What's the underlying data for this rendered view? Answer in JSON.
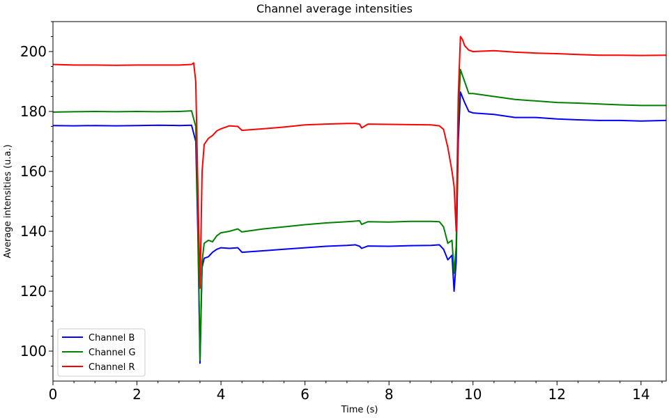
{
  "chart_data": {
    "type": "line",
    "title": "Channel average intensities",
    "xlabel": "Time (s)",
    "ylabel": "Average intensities (u.a.)",
    "xlim": [
      0,
      14.6
    ],
    "ylim": [
      90,
      210
    ],
    "xticks": [
      0,
      2,
      4,
      6,
      8,
      10,
      12,
      14
    ],
    "yticks": [
      100,
      120,
      140,
      160,
      180,
      200
    ],
    "xtick_labels": [
      "0",
      "2",
      "4",
      "6",
      "8",
      "10",
      "12",
      "14"
    ],
    "ytick_labels": [
      "100",
      "120",
      "140",
      "160",
      "180",
      "200"
    ],
    "grid": false,
    "legend_position": "lower-left",
    "series": [
      {
        "name": "Channel B",
        "color": "#0000ff",
        "x": [
          0,
          0.5,
          1.0,
          1.5,
          2.0,
          2.5,
          3.0,
          3.3,
          3.4,
          3.45,
          3.5,
          3.55,
          3.6,
          3.7,
          3.8,
          3.9,
          4.0,
          4.2,
          4.4,
          4.5,
          5.0,
          5.5,
          6.0,
          6.5,
          7.0,
          7.2,
          7.3,
          7.35,
          7.5,
          8.0,
          8.5,
          9.0,
          9.2,
          9.3,
          9.4,
          9.5,
          9.55,
          9.6,
          9.65,
          9.7,
          9.8,
          9.9,
          10.0,
          10.5,
          11.0,
          11.5,
          12.0,
          12.5,
          13.0,
          13.5,
          14.0,
          14.6
        ],
        "y": [
          175.3,
          175.2,
          175.3,
          175.2,
          175.3,
          175.4,
          175.3,
          175.4,
          170,
          140,
          96,
          128,
          131,
          131.5,
          133,
          134,
          134.5,
          134.3,
          134.5,
          133,
          133.5,
          134,
          134.5,
          135,
          135.3,
          135.5,
          135.0,
          134.3,
          135.1,
          135.0,
          135.2,
          135.3,
          135.5,
          134.0,
          130.5,
          132,
          120,
          130,
          170,
          186.5,
          183,
          180,
          179.5,
          179,
          178,
          178,
          177.5,
          177.2,
          177,
          177,
          176.8,
          177
        ]
      },
      {
        "name": "Channel G",
        "color": "#008000",
        "x": [
          0,
          0.5,
          1.0,
          1.5,
          2.0,
          2.5,
          3.0,
          3.3,
          3.4,
          3.45,
          3.5,
          3.55,
          3.6,
          3.7,
          3.8,
          3.9,
          4.0,
          4.2,
          4.4,
          4.5,
          5.0,
          5.5,
          6.0,
          6.5,
          7.0,
          7.2,
          7.3,
          7.35,
          7.5,
          8.0,
          8.5,
          9.0,
          9.2,
          9.3,
          9.4,
          9.5,
          9.55,
          9.6,
          9.65,
          9.7,
          9.8,
          9.9,
          10.0,
          10.5,
          11.0,
          11.5,
          12.0,
          12.5,
          13.0,
          13.5,
          14.0,
          14.6
        ],
        "y": [
          179.8,
          179.9,
          180.0,
          179.9,
          180.0,
          179.9,
          180.0,
          180.2,
          175,
          145,
          97,
          130,
          136,
          137,
          136.5,
          138.5,
          139.5,
          140.0,
          140.8,
          139.8,
          140.8,
          141.5,
          142.2,
          142.8,
          143.2,
          143.4,
          143.5,
          142.3,
          143.2,
          143.1,
          143.3,
          143.3,
          143.2,
          141.5,
          136,
          137,
          126,
          135,
          178,
          194,
          190,
          186,
          186,
          185,
          184,
          183.5,
          183,
          182.8,
          182.5,
          182.2,
          182,
          182
        ]
      },
      {
        "name": "Channel R",
        "color": "#ff0000",
        "x": [
          0,
          0.5,
          1.0,
          1.5,
          2.0,
          2.5,
          3.0,
          3.3,
          3.35,
          3.4,
          3.45,
          3.5,
          3.55,
          3.6,
          3.7,
          3.8,
          3.9,
          4.0,
          4.2,
          4.4,
          4.5,
          5.0,
          5.5,
          6.0,
          6.5,
          7.0,
          7.2,
          7.3,
          7.35,
          7.5,
          8.0,
          8.5,
          9.0,
          9.2,
          9.3,
          9.4,
          9.5,
          9.55,
          9.6,
          9.65,
          9.7,
          9.75,
          9.8,
          9.9,
          10.0,
          10.5,
          11.0,
          11.5,
          12.0,
          12.5,
          13.0,
          13.5,
          14.0,
          14.6
        ],
        "y": [
          195.7,
          195.5,
          195.5,
          195.4,
          195.5,
          195.5,
          195.5,
          195.7,
          196.2,
          190,
          155,
          121,
          160,
          169,
          171,
          172,
          173.5,
          174.2,
          175.2,
          175.0,
          173.7,
          174.2,
          174.8,
          175.5,
          175.8,
          176.0,
          176.0,
          175.8,
          174.5,
          175.8,
          175.7,
          175.6,
          175.5,
          175.2,
          174,
          168,
          160,
          155,
          140,
          185,
          205,
          204,
          202,
          200.5,
          200,
          200.3,
          199.8,
          199.5,
          199.3,
          199.0,
          198.8,
          198.8,
          198.7,
          198.8
        ]
      }
    ]
  }
}
